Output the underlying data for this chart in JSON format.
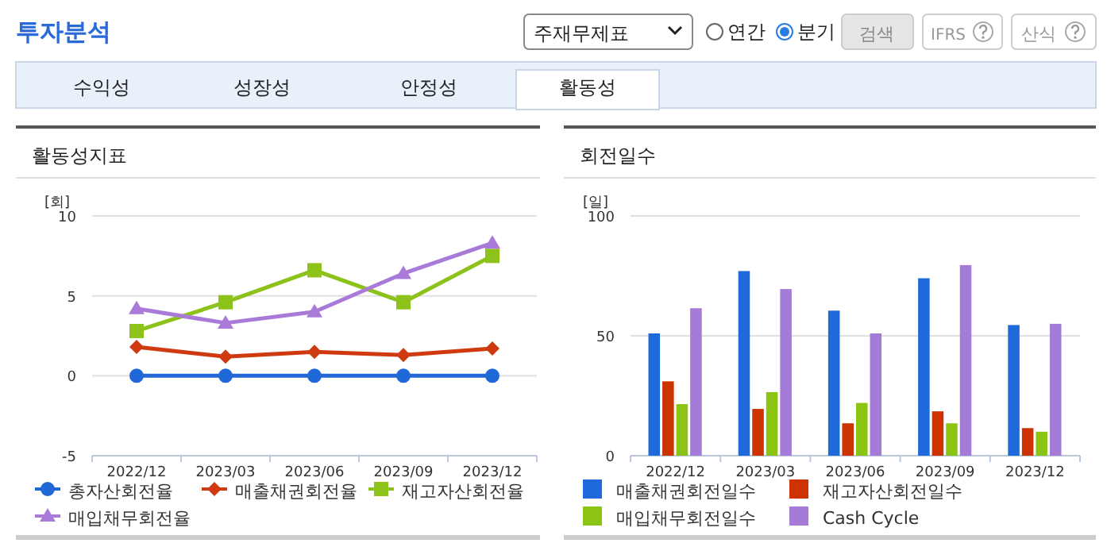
{
  "chart_data": [
    {
      "type": "other",
      "title": "투자분석",
      "annotations": [
        "주재무제표",
        "연간",
        "분기",
        "검색",
        "IFRS",
        "산식",
        "수익성",
        "성장성",
        "안정성",
        "활동성"
      ]
    },
    {
      "type": "line",
      "title": "활동성지표",
      "ylabel": "[회]",
      "categories": [
        "2022/12",
        "2023/03",
        "2023/06",
        "2023/09",
        "2023/12"
      ],
      "ylim": [
        -5,
        10
      ],
      "yticks": [
        -5,
        0,
        5,
        10
      ],
      "grid": "y",
      "legend": "bottom",
      "series": [
        {
          "name": "총자산회전율",
          "color": "#2067d8",
          "marker": "circle",
          "values": [
            0,
            0,
            0,
            0,
            0
          ]
        },
        {
          "name": "매출채권회전율",
          "color": "#d03a10",
          "marker": "diamond",
          "values": [
            1.8,
            1.2,
            1.5,
            1.3,
            1.7
          ]
        },
        {
          "name": "재고자산회전율",
          "color": "#8cc21a",
          "marker": "square",
          "values": [
            2.8,
            4.6,
            6.6,
            4.6,
            7.5
          ]
        },
        {
          "name": "매입채무회전율",
          "color": "#a97ad8",
          "marker": "triangle",
          "values": [
            4.2,
            3.3,
            4,
            6.4,
            8.3
          ]
        }
      ]
    },
    {
      "type": "bar",
      "title": "회전일수",
      "ylabel": "[일]",
      "categories": [
        "2022/12",
        "2023/03",
        "2023/06",
        "2023/09",
        "2023/12"
      ],
      "ylim": [
        0,
        100
      ],
      "yticks": [
        0,
        50,
        100
      ],
      "grid": "y",
      "legend": "bottom",
      "series": [
        {
          "name": "매출채권회전일수",
          "color": "#1f6adb",
          "values": [
            51,
            77,
            60.5,
            74,
            54.5
          ]
        },
        {
          "name": "재고자산회전일수",
          "color": "#cc3300",
          "values": [
            31,
            19.5,
            13.5,
            18.5,
            11.5
          ]
        },
        {
          "name": "매입채무회전일수",
          "color": "#8cc414",
          "values": [
            21.5,
            26.5,
            22,
            13.5,
            10
          ]
        },
        {
          "name": "Cash Cycle",
          "color": "#a57bd8",
          "values": [
            61.5,
            69.5,
            51,
            79.5,
            55
          ]
        }
      ]
    }
  ]
}
